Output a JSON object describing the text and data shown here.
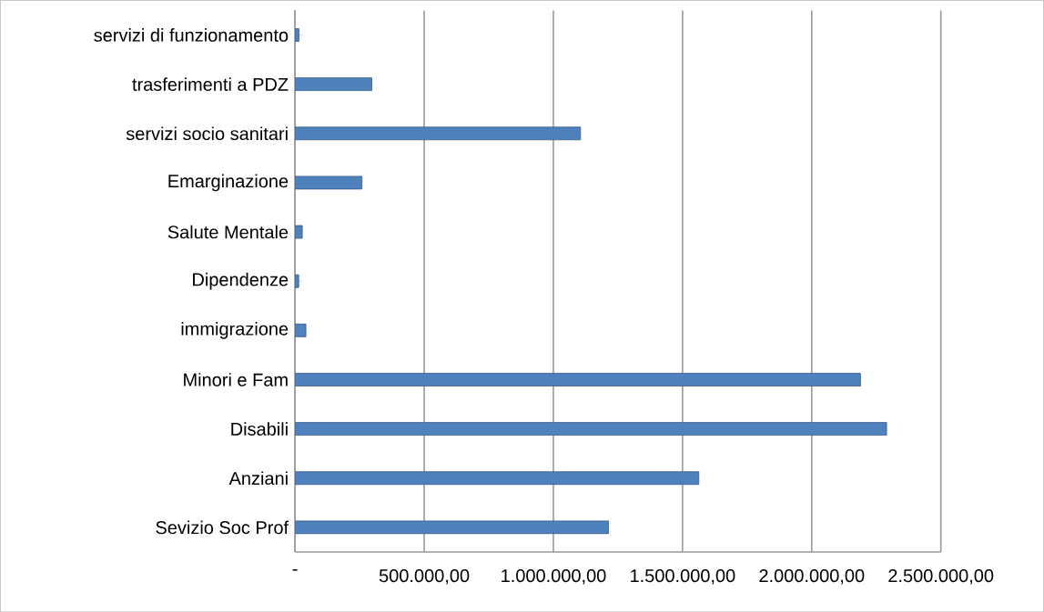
{
  "chart_data": {
    "type": "bar",
    "orientation": "horizontal",
    "categories": [
      "servizi di funzionamento",
      "trasferimenti a PDZ",
      "servizi socio sanitari",
      "Emarginazione",
      "Salute Mentale",
      "Dipendenze",
      "immigrazione",
      "Minori e Fam",
      "Disabili",
      "Anziani",
      "Sevizio Soc Prof"
    ],
    "values": [
      15000,
      297000,
      1105000,
      259000,
      28000,
      14000,
      42000,
      2189000,
      2290000,
      1563000,
      1213000
    ],
    "color": "#4f81bd",
    "xlim": [
      0,
      2500000
    ],
    "xticks": [
      {
        "value": 0,
        "label": "-"
      },
      {
        "value": 500000,
        "label": "500.000,00"
      },
      {
        "value": 1000000,
        "label": "1.000.000,00"
      },
      {
        "value": 1500000,
        "label": "1.500.000,00"
      },
      {
        "value": 2000000,
        "label": "2.000.000,00"
      },
      {
        "value": 2500000,
        "label": "2.500.000,00"
      }
    ],
    "grid": "x"
  }
}
